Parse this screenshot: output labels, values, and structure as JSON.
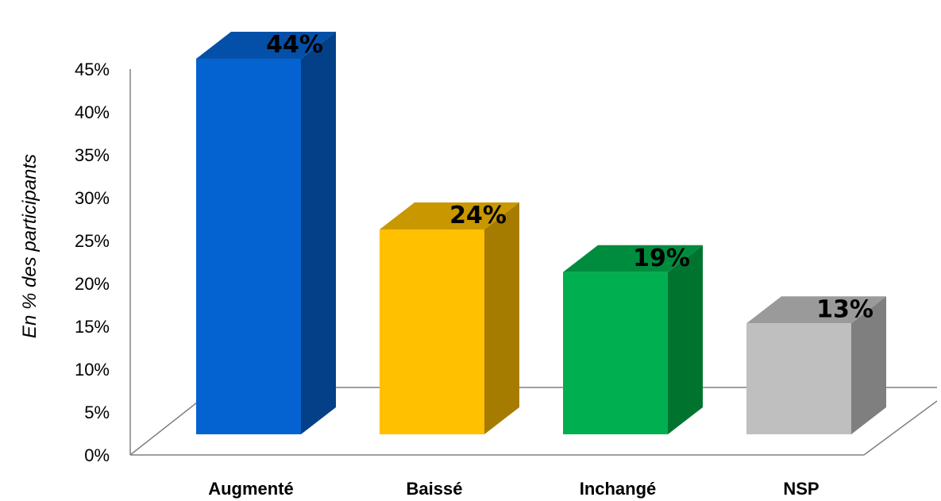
{
  "chart_data": {
    "type": "bar",
    "categories": [
      "Augmenté",
      "Baissé",
      "Inchangé",
      "NSP"
    ],
    "values": [
      44,
      24,
      19,
      13
    ],
    "data_labels": [
      "44%",
      "24%",
      "19%",
      "13%"
    ],
    "ylabel": "En % des participants",
    "ylim": [
      0,
      45
    ],
    "yticks": [
      "0%",
      "5%",
      "10%",
      "15%",
      "20%",
      "25%",
      "30%",
      "35%",
      "40%",
      "45%"
    ],
    "grid": false,
    "legend": "none",
    "style": "3d-column",
    "colors": {
      "front": [
        "#0563D1",
        "#FFC000",
        "#00B050",
        "#BFBFBF"
      ],
      "side": [
        "#034088",
        "#A67C00",
        "#00742F",
        "#7F7F7F"
      ],
      "top": [
        "#0450A8",
        "#C99700",
        "#008C3E",
        "#9A9A9A"
      ]
    }
  }
}
